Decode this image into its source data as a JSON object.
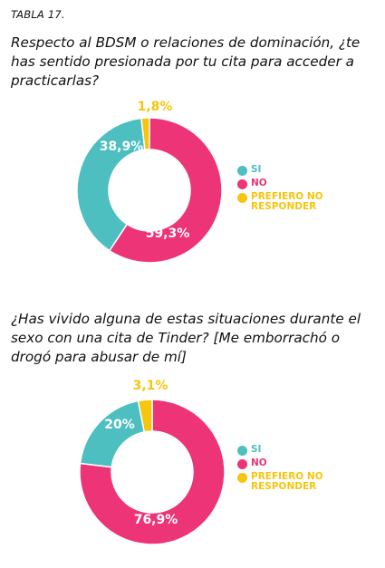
{
  "table_label": "TABLA 17.",
  "colors": {
    "si": "#4DBFC1",
    "no": "#EC3477",
    "prefiero": "#F6C50E"
  },
  "chart_data": [
    {
      "type": "pie",
      "title": "Respecto al BDSM o relaciones de dominación, ¿te has sentido presionada por tu cita para acceder a practicarlas?",
      "series": [
        {
          "name": "SI",
          "value": 38.9,
          "label": "38,9%"
        },
        {
          "name": "NO",
          "value": 59.3,
          "label": "59,3%"
        },
        {
          "name": "PREFIERO NO RESPONDER",
          "value": 1.8,
          "label": "1,8%"
        }
      ],
      "legend": [
        "SI",
        "NO",
        "PREFIERO NO RESPONDER"
      ],
      "legend_position": "right"
    },
    {
      "type": "pie",
      "title": "¿Has vivido alguna de estas situaciones durante el sexo con una cita de Tinder?  [Me emborrachó o drogó para abusar de mí]",
      "series": [
        {
          "name": "SI",
          "value": 20,
          "label": "20%"
        },
        {
          "name": "NO",
          "value": 76.9,
          "label": "76,9%"
        },
        {
          "name": "PREFIERO NO RESPONDER",
          "value": 3.1,
          "label": "3,1%"
        }
      ],
      "legend": [
        "SI",
        "NO",
        "PREFIERO NO RESPONDER"
      ],
      "legend_position": "right"
    }
  ]
}
